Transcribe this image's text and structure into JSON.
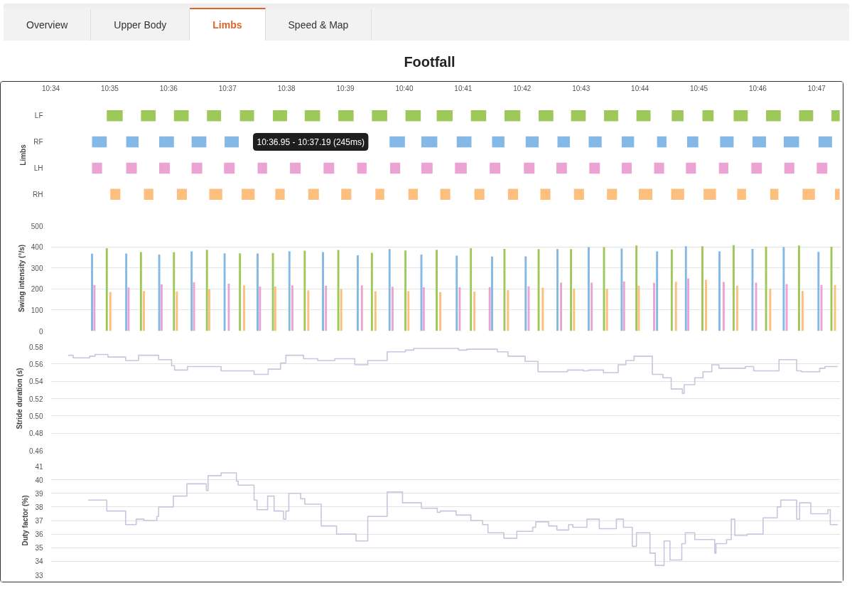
{
  "chart_data": [
    {
      "type": "bar",
      "orientation": "horizontal",
      "title": "Footfall",
      "ylabel": "Limbs",
      "categories": [
        "LF",
        "RF",
        "LH",
        "RH"
      ],
      "xlim": [
        634,
        647.4
      ],
      "xticks": [
        {
          "value": 634,
          "label": "10:34"
        },
        {
          "value": 635,
          "label": "10:35"
        },
        {
          "value": 636,
          "label": "10:36"
        },
        {
          "value": 637,
          "label": "10:37"
        },
        {
          "value": 638,
          "label": "10:38"
        },
        {
          "value": 639,
          "label": "10:39"
        },
        {
          "value": 640,
          "label": "10:40"
        },
        {
          "value": 641,
          "label": "10:41"
        },
        {
          "value": 642,
          "label": "10:42"
        },
        {
          "value": 643,
          "label": "10:43"
        },
        {
          "value": 644,
          "label": "10:44"
        },
        {
          "value": 645,
          "label": "10:45"
        },
        {
          "value": 646,
          "label": "10:46"
        },
        {
          "value": 647,
          "label": "10:47"
        }
      ],
      "series": [
        {
          "colors": [
            "#9fc85a",
            "#84b8e6",
            "#eaa3d3",
            "#fdbf7e"
          ],
          "base": [
            634.95,
            634.7,
            634.7,
            635.01
          ],
          "values": [
            0.27,
            0.25,
            0.17,
            0.17
          ]
        },
        {
          "colors": [
            "#9fc85a",
            "#84b8e6",
            "#eaa3d3",
            "#fdbf7e"
          ],
          "base": [
            635.53,
            635.28,
            635.28,
            635.58
          ],
          "values": [
            0.25,
            0.21,
            0.18,
            0.16
          ]
        },
        {
          "colors": [
            "#9fc85a",
            "#84b8e6",
            "#eaa3d3",
            "#fdbf7e"
          ],
          "base": [
            636.09,
            635.84,
            635.84,
            636.14
          ],
          "values": [
            0.25,
            0.25,
            0.18,
            0.17
          ]
        },
        {
          "colors": [
            "#9fc85a",
            "#84b8e6",
            "#eaa3d3",
            "#fdbf7e"
          ],
          "base": [
            636.65,
            636.39,
            636.39,
            636.69
          ],
          "values": [
            0.24,
            0.25,
            0.18,
            0.22
          ]
        },
        {
          "colors": [
            "#9fc85a",
            "#84b8e6",
            "#eaa3d3",
            "#fdbf7e"
          ],
          "base": [
            637.21,
            636.95,
            636.94,
            637.24
          ],
          "values": [
            0.24,
            0.24,
            0.18,
            0.22
          ]
        },
        {
          "colors": [
            "#9fc85a",
            "#84b8e6",
            "#eaa3d3",
            "#fdbf7e"
          ],
          "base": [
            637.77,
            null,
            637.51,
            637.81
          ],
          "values": [
            0.24,
            null,
            0.16,
            0.16
          ]
        },
        {
          "colors": [
            "#9fc85a",
            "#84b8e6",
            "#eaa3d3",
            "#fdbf7e"
          ],
          "base": [
            638.31,
            null,
            638.06,
            638.37
          ],
          "values": [
            0.26,
            null,
            0.18,
            0.18
          ]
        },
        {
          "colors": [
            "#9fc85a",
            "#84b8e6",
            "#eaa3d3",
            "#fdbf7e"
          ],
          "base": [
            638.88,
            null,
            638.63,
            638.93
          ],
          "values": [
            0.26,
            null,
            0.18,
            0.17
          ]
        },
        {
          "colors": [
            "#9fc85a",
            "#84b8e6",
            "#eaa3d3",
            "#fdbf7e"
          ],
          "base": [
            639.45,
            null,
            639.2,
            639.51
          ],
          "values": [
            0.26,
            null,
            0.16,
            0.15
          ]
        },
        {
          "colors": [
            "#9fc85a",
            "#84b8e6",
            "#eaa3d3",
            "#fdbf7e"
          ],
          "base": [
            640.02,
            639.75,
            639.76,
            640.07
          ],
          "values": [
            0.26,
            0.26,
            0.17,
            0.16
          ]
        },
        {
          "colors": [
            "#9fc85a",
            "#84b8e6",
            "#eaa3d3",
            "#fdbf7e"
          ],
          "base": [
            640.55,
            640.29,
            640.29,
            640.61
          ],
          "values": [
            0.27,
            0.27,
            0.19,
            0.17
          ]
        },
        {
          "colors": [
            "#9fc85a",
            "#84b8e6",
            "#eaa3d3",
            "#fdbf7e"
          ],
          "base": [
            641.13,
            640.89,
            640.86,
            641.19
          ],
          "values": [
            0.26,
            0.25,
            0.2,
            0.17
          ]
        },
        {
          "colors": [
            "#9fc85a",
            "#84b8e6",
            "#eaa3d3",
            "#fdbf7e"
          ],
          "base": [
            641.7,
            641.49,
            641.45,
            641.76
          ],
          "values": [
            0.27,
            0.21,
            0.18,
            0.17
          ]
        },
        {
          "colors": [
            "#9fc85a",
            "#84b8e6",
            "#eaa3d3",
            "#fdbf7e"
          ],
          "base": [
            642.28,
            642.06,
            642.03,
            642.31
          ],
          "values": [
            0.25,
            0.22,
            0.18,
            0.17
          ]
        },
        {
          "colors": [
            "#9fc85a",
            "#84b8e6",
            "#eaa3d3",
            "#fdbf7e"
          ],
          "base": [
            642.83,
            642.6,
            642.58,
            642.88
          ],
          "values": [
            0.25,
            0.21,
            0.18,
            0.17
          ]
        },
        {
          "colors": [
            "#9fc85a",
            "#84b8e6",
            "#eaa3d3",
            "#fdbf7e"
          ],
          "base": [
            643.39,
            643.13,
            643.14,
            643.44
          ],
          "values": [
            0.24,
            0.22,
            0.18,
            0.17
          ]
        },
        {
          "colors": [
            "#9fc85a",
            "#84b8e6",
            "#eaa3d3",
            "#fdbf7e"
          ],
          "base": [
            643.94,
            643.69,
            643.69,
            643.98
          ],
          "values": [
            0.24,
            0.21,
            0.17,
            0.23
          ]
        },
        {
          "colors": [
            "#9fc85a",
            "#84b8e6",
            "#eaa3d3",
            "#fdbf7e"
          ],
          "base": [
            644.54,
            644.29,
            644.24,
            644.53
          ],
          "values": [
            0.2,
            0.16,
            0.17,
            0.22
          ]
        },
        {
          "colors": [
            "#9fc85a",
            "#84b8e6",
            "#eaa3d3",
            "#fdbf7e"
          ],
          "base": [
            645.06,
            644.8,
            644.78,
            645.08
          ],
          "values": [
            0.19,
            0.19,
            0.17,
            0.21
          ]
        },
        {
          "colors": [
            "#9fc85a",
            "#84b8e6",
            "#eaa3d3",
            "#fdbf7e"
          ],
          "base": [
            645.59,
            645.36,
            645.34,
            645.65
          ],
          "values": [
            0.24,
            0.23,
            0.16,
            0.15
          ]
        },
        {
          "colors": [
            "#9fc85a",
            "#84b8e6",
            "#eaa3d3",
            "#fdbf7e"
          ],
          "base": [
            646.14,
            645.91,
            645.89,
            646.21
          ],
          "values": [
            0.25,
            0.23,
            0.18,
            0.14
          ]
        },
        {
          "colors": [
            "#9fc85a",
            "#84b8e6",
            "#eaa3d3",
            "#fdbf7e"
          ],
          "base": [
            646.7,
            646.44,
            646.45,
            646.76
          ],
          "values": [
            0.24,
            0.26,
            0.17,
            0.21
          ]
        },
        {
          "colors": [
            "#9fc85a",
            "#84b8e6",
            "#eaa3d3",
            "#fdbf7e"
          ],
          "base": [
            647.25,
            647.03,
            647.0,
            647.31
          ],
          "values": [
            0.14,
            0.23,
            0.18,
            0.08
          ]
        }
      ],
      "annotations": [
        "Overview",
        "Upper Body",
        "Limbs",
        "Speed & Map",
        "10:36.95 - 10:37.19 (245ms)"
      ]
    },
    {
      "type": "bar",
      "ylabel": "Swing intensity (°/s)",
      "xlim": [
        634,
        647.4
      ],
      "ylim": [
        0,
        500
      ],
      "yticks": [
        0,
        100,
        200,
        300,
        400,
        500
      ],
      "grid": "y",
      "tick_labels": "y",
      "series": [
        {
          "color": "#84b8e6",
          "x": [
            634.7,
            635.28,
            635.84,
            636.39,
            636.95,
            637.51,
            638.05,
            638.62,
            639.21,
            639.75,
            640.29,
            640.89,
            641.49,
            642.06,
            642.6,
            643.13,
            643.69,
            644.29,
            644.78,
            645.35,
            645.91,
            646.44,
            647.03
          ],
          "values": [
            367,
            368,
            363,
            378,
            369,
            368,
            378,
            375,
            360,
            389,
            363,
            358,
            354,
            355,
            389,
            399,
            392,
            378,
            403,
            378,
            390,
            399,
            376
          ]
        },
        {
          "color": "#9fc85a",
          "x": [
            634.95,
            635.53,
            636.09,
            636.65,
            637.21,
            637.77,
            638.31,
            638.88,
            639.45,
            640.02,
            640.55,
            641.13,
            641.7,
            642.28,
            642.83,
            643.39,
            643.94,
            644.54,
            645.06,
            645.59,
            646.14,
            646.7,
            647.25
          ],
          "values": [
            394,
            375,
            374,
            386,
            369,
            371,
            382,
            385,
            372,
            383,
            386,
            394,
            390,
            389,
            389,
            399,
            406,
            388,
            403,
            408,
            401,
            406,
            400
          ]
        },
        {
          "color": "#eaa3d3",
          "x": [
            634.7,
            635.28,
            635.84,
            636.39,
            636.94,
            637.51,
            638.06,
            638.63,
            639.2,
            639.76,
            640.29,
            640.86,
            641.45,
            642.03,
            642.58,
            643.14,
            643.69,
            644.24,
            644.78,
            645.34,
            645.89,
            646.45,
            647.0
          ],
          "values": [
            219,
            207,
            221,
            231,
            225,
            211,
            217,
            215,
            217,
            210,
            208,
            208,
            209,
            212,
            230,
            230,
            236,
            229,
            250,
            233,
            230,
            223,
            219
          ]
        },
        {
          "color": "#fdbf7e",
          "x": [
            635.01,
            635.58,
            636.14,
            636.69,
            637.24,
            637.81,
            638.37,
            638.93,
            639.51,
            640.07,
            640.61,
            641.19,
            641.76,
            642.31,
            642.88,
            643.44,
            643.98,
            644.53,
            645.08,
            645.65,
            646.21,
            646.76,
            647.31
          ],
          "values": [
            185,
            190,
            188,
            199,
            217,
            211,
            193,
            199,
            189,
            189,
            185,
            187,
            194,
            206,
            202,
            201,
            215,
            234,
            243,
            215,
            201,
            190,
            219
          ]
        }
      ]
    },
    {
      "type": "step",
      "ylabel": "Stride duration (s)",
      "xlim": [
        634,
        647.4
      ],
      "ylim": [
        0.46,
        0.58
      ],
      "yticks": [
        {
          "value": 0.46,
          "label": "0.46"
        },
        {
          "value": 0.48,
          "label": "0.48"
        },
        {
          "value": 0.5,
          "label": "0.50"
        },
        {
          "value": 0.52,
          "label": "0.52"
        },
        {
          "value": 0.54,
          "label": "0.54"
        },
        {
          "value": 0.56,
          "label": "0.56"
        },
        {
          "value": 0.58,
          "label": "0.58"
        }
      ],
      "grid": "y",
      "tick_labels": "y",
      "series": [
        {
          "color": "#c6c6de",
          "x": [
            634.3,
            634.38,
            634.66,
            634.75,
            634.97,
            635.27,
            635.49,
            635.83,
            636.05,
            636.1,
            636.32,
            636.89,
            637.45,
            637.69,
            637.9,
            637.99,
            638.29,
            638.53,
            638.82,
            639.16,
            639.38,
            639.71,
            640.02,
            640.16,
            640.92,
            641.06,
            641.58,
            641.76,
            642.05,
            642.27,
            642.77,
            643.04,
            643.13,
            643.38,
            643.63,
            643.76,
            643.9,
            644.21,
            644.39,
            644.53,
            644.72,
            644.75,
            644.93,
            645.07,
            645.22,
            645.34,
            645.79,
            645.93,
            646.36,
            646.66,
            646.74,
            647.05,
            647.14,
            647.35
          ],
          "values": [
            0.57,
            0.567,
            0.569,
            0.571,
            0.568,
            0.564,
            0.57,
            0.565,
            0.558,
            0.553,
            0.557,
            0.552,
            0.548,
            0.554,
            0.561,
            0.57,
            0.566,
            0.564,
            0.566,
            0.559,
            0.564,
            0.574,
            0.576,
            0.578,
            0.576,
            0.577,
            0.574,
            0.569,
            0.563,
            0.551,
            0.553,
            0.552,
            0.553,
            0.55,
            0.559,
            0.564,
            0.569,
            0.548,
            0.544,
            0.531,
            0.526,
            0.536,
            0.544,
            0.551,
            0.559,
            0.555,
            0.557,
            0.552,
            0.565,
            0.552,
            0.551,
            0.555,
            0.557,
            0.557
          ]
        }
      ]
    },
    {
      "type": "step",
      "ylabel": "Duty factor (%)",
      "xlim": [
        634,
        647.4
      ],
      "ylim": [
        33,
        41
      ],
      "yticks": [
        33,
        34,
        35,
        36,
        37,
        38,
        39,
        40,
        41
      ],
      "grid": "y",
      "tick_labels": "y",
      "series": [
        {
          "color": "#c6c6de",
          "x": [
            634.64,
            634.95,
            635.27,
            635.45,
            635.58,
            635.8,
            635.83,
            636.08,
            636.31,
            636.64,
            636.67,
            636.89,
            637.15,
            637.18,
            637.45,
            637.5,
            637.68,
            637.79,
            637.95,
            637.99,
            638.04,
            638.24,
            638.31,
            638.59,
            638.85,
            639.18,
            639.38,
            639.71,
            639.97,
            640.29,
            640.56,
            640.61,
            640.88,
            641.13,
            641.33,
            641.42,
            641.69,
            641.91,
            642.18,
            642.23,
            642.45,
            642.59,
            642.79,
            642.86,
            643.1,
            643.31,
            643.6,
            643.72,
            643.87,
            643.94,
            644.17,
            644.26,
            644.41,
            644.51,
            644.71,
            644.77,
            644.93,
            645.27,
            645.29,
            645.47,
            645.55,
            645.61,
            645.82,
            646.09,
            646.33,
            646.39,
            646.66,
            646.71,
            646.9,
            647.19,
            647.23,
            647.35
          ],
          "values": [
            38.5,
            37.7,
            36.7,
            37.1,
            37.0,
            37.3,
            38.0,
            38.8,
            39.7,
            39.2,
            40.3,
            40.5,
            39.9,
            39.6,
            38.5,
            37.8,
            38.8,
            37.7,
            37.1,
            37.7,
            39.0,
            38.6,
            38.2,
            36.6,
            36.0,
            35.5,
            37.3,
            39.1,
            38.3,
            37.9,
            37.6,
            37.7,
            37.4,
            37.0,
            36.7,
            36.1,
            35.7,
            36.2,
            36.5,
            36.9,
            36.6,
            36.3,
            36.7,
            36.5,
            37.1,
            36.4,
            37.1,
            36.5,
            35.1,
            36.1,
            34.6,
            33.7,
            35.5,
            34.1,
            35.3,
            36.1,
            35.6,
            34.6,
            35.3,
            35.6,
            37.1,
            35.9,
            36.0,
            37.2,
            38.0,
            38.5,
            37.1,
            38.3,
            37.5,
            37.8,
            36.7,
            36.7
          ]
        }
      ]
    }
  ]
}
